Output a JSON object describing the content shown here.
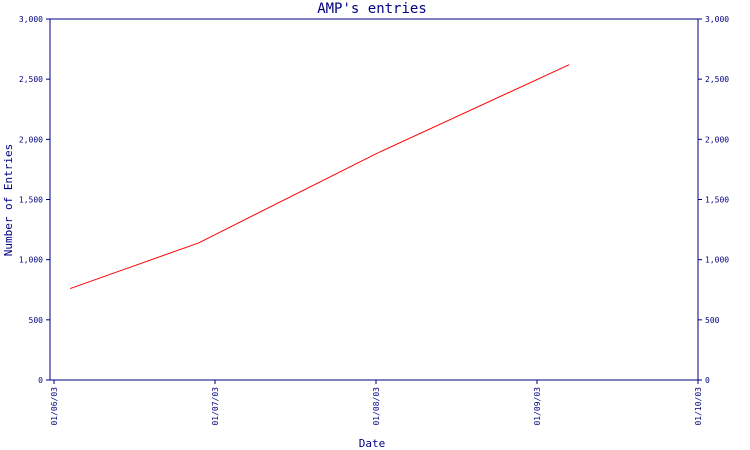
{
  "chart_data": {
    "type": "line",
    "title": "AMP's entries",
    "xlabel": "Date",
    "ylabel": "Number of Entries",
    "x_ticks": [
      "01/06/03",
      "01/07/03",
      "01/08/03",
      "01/09/03",
      "01/10/03"
    ],
    "x_range": [
      "01/06/03",
      "01/10/03"
    ],
    "y_ticks": [
      "0",
      "500",
      "1,000",
      "1,500",
      "2,000",
      "2,500",
      "3,000"
    ],
    "y_tick_values": [
      0,
      500,
      1000,
      1500,
      2000,
      2500,
      3000
    ],
    "ylim": [
      0,
      3000
    ],
    "secondary_y_axis": true,
    "grid": false,
    "series": [
      {
        "color": "#ff0000",
        "x": [
          "01/06/03",
          "01/07/03",
          "01/08/03",
          "01/09/03"
        ],
        "x_positions": [
          0.1,
          0.9,
          2.0,
          3.2
        ],
        "values": [
          760,
          1140,
          1880,
          2620
        ]
      }
    ]
  },
  "colors": {
    "axis": "#000080",
    "text": "#000080",
    "line": "#ff0000"
  }
}
